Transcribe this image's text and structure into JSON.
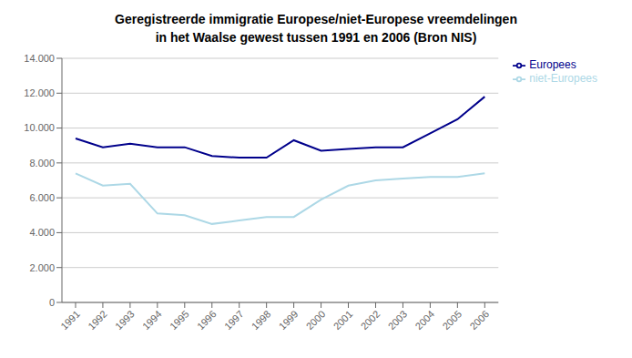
{
  "chart_data": {
    "type": "line",
    "title": "Geregistreerde immigratie Europese/niet-Europese vreemdelingen",
    "subtitle": "in het Waalse gewest tussen 1991 en 2006 (Bron NIS)",
    "x": [
      1991,
      1992,
      1993,
      1994,
      1995,
      1996,
      1997,
      1998,
      1999,
      2000,
      2001,
      2002,
      2003,
      2004,
      2005,
      2006
    ],
    "series": [
      {
        "name": "Europees",
        "color": "#00008B",
        "values": [
          9400,
          8900,
          9100,
          8900,
          8900,
          8400,
          8300,
          8300,
          9300,
          8700,
          8800,
          8900,
          8900,
          9700,
          10500,
          11800
        ]
      },
      {
        "name": "niet-Europees",
        "color": "#add8e6",
        "values": [
          7400,
          6700,
          6800,
          5100,
          5000,
          4500,
          4700,
          4900,
          4900,
          5900,
          6700,
          7000,
          7100,
          7200,
          7200,
          7400
        ]
      }
    ],
    "xlim": [
      1990.5,
      2006.5
    ],
    "xticks": [
      1991,
      1992,
      1993,
      1994,
      1995,
      1996,
      1997,
      1998,
      1999,
      2000,
      2001,
      2002,
      2003,
      2004,
      2005,
      2006
    ],
    "ylim": [
      0,
      14000
    ],
    "yticks": [
      0,
      {
        "value": 2000,
        "label": "2.000"
      },
      {
        "value": 4000,
        "label": "4.000"
      },
      {
        "value": 6000,
        "label": "6.000"
      },
      {
        "value": 8000,
        "label": "8.000"
      },
      {
        "value": 10000,
        "label": "10.000"
      },
      {
        "value": 12000,
        "label": "12.000"
      },
      {
        "value": 14000,
        "label": "14.000"
      }
    ],
    "grid": true,
    "legend": "right"
  }
}
